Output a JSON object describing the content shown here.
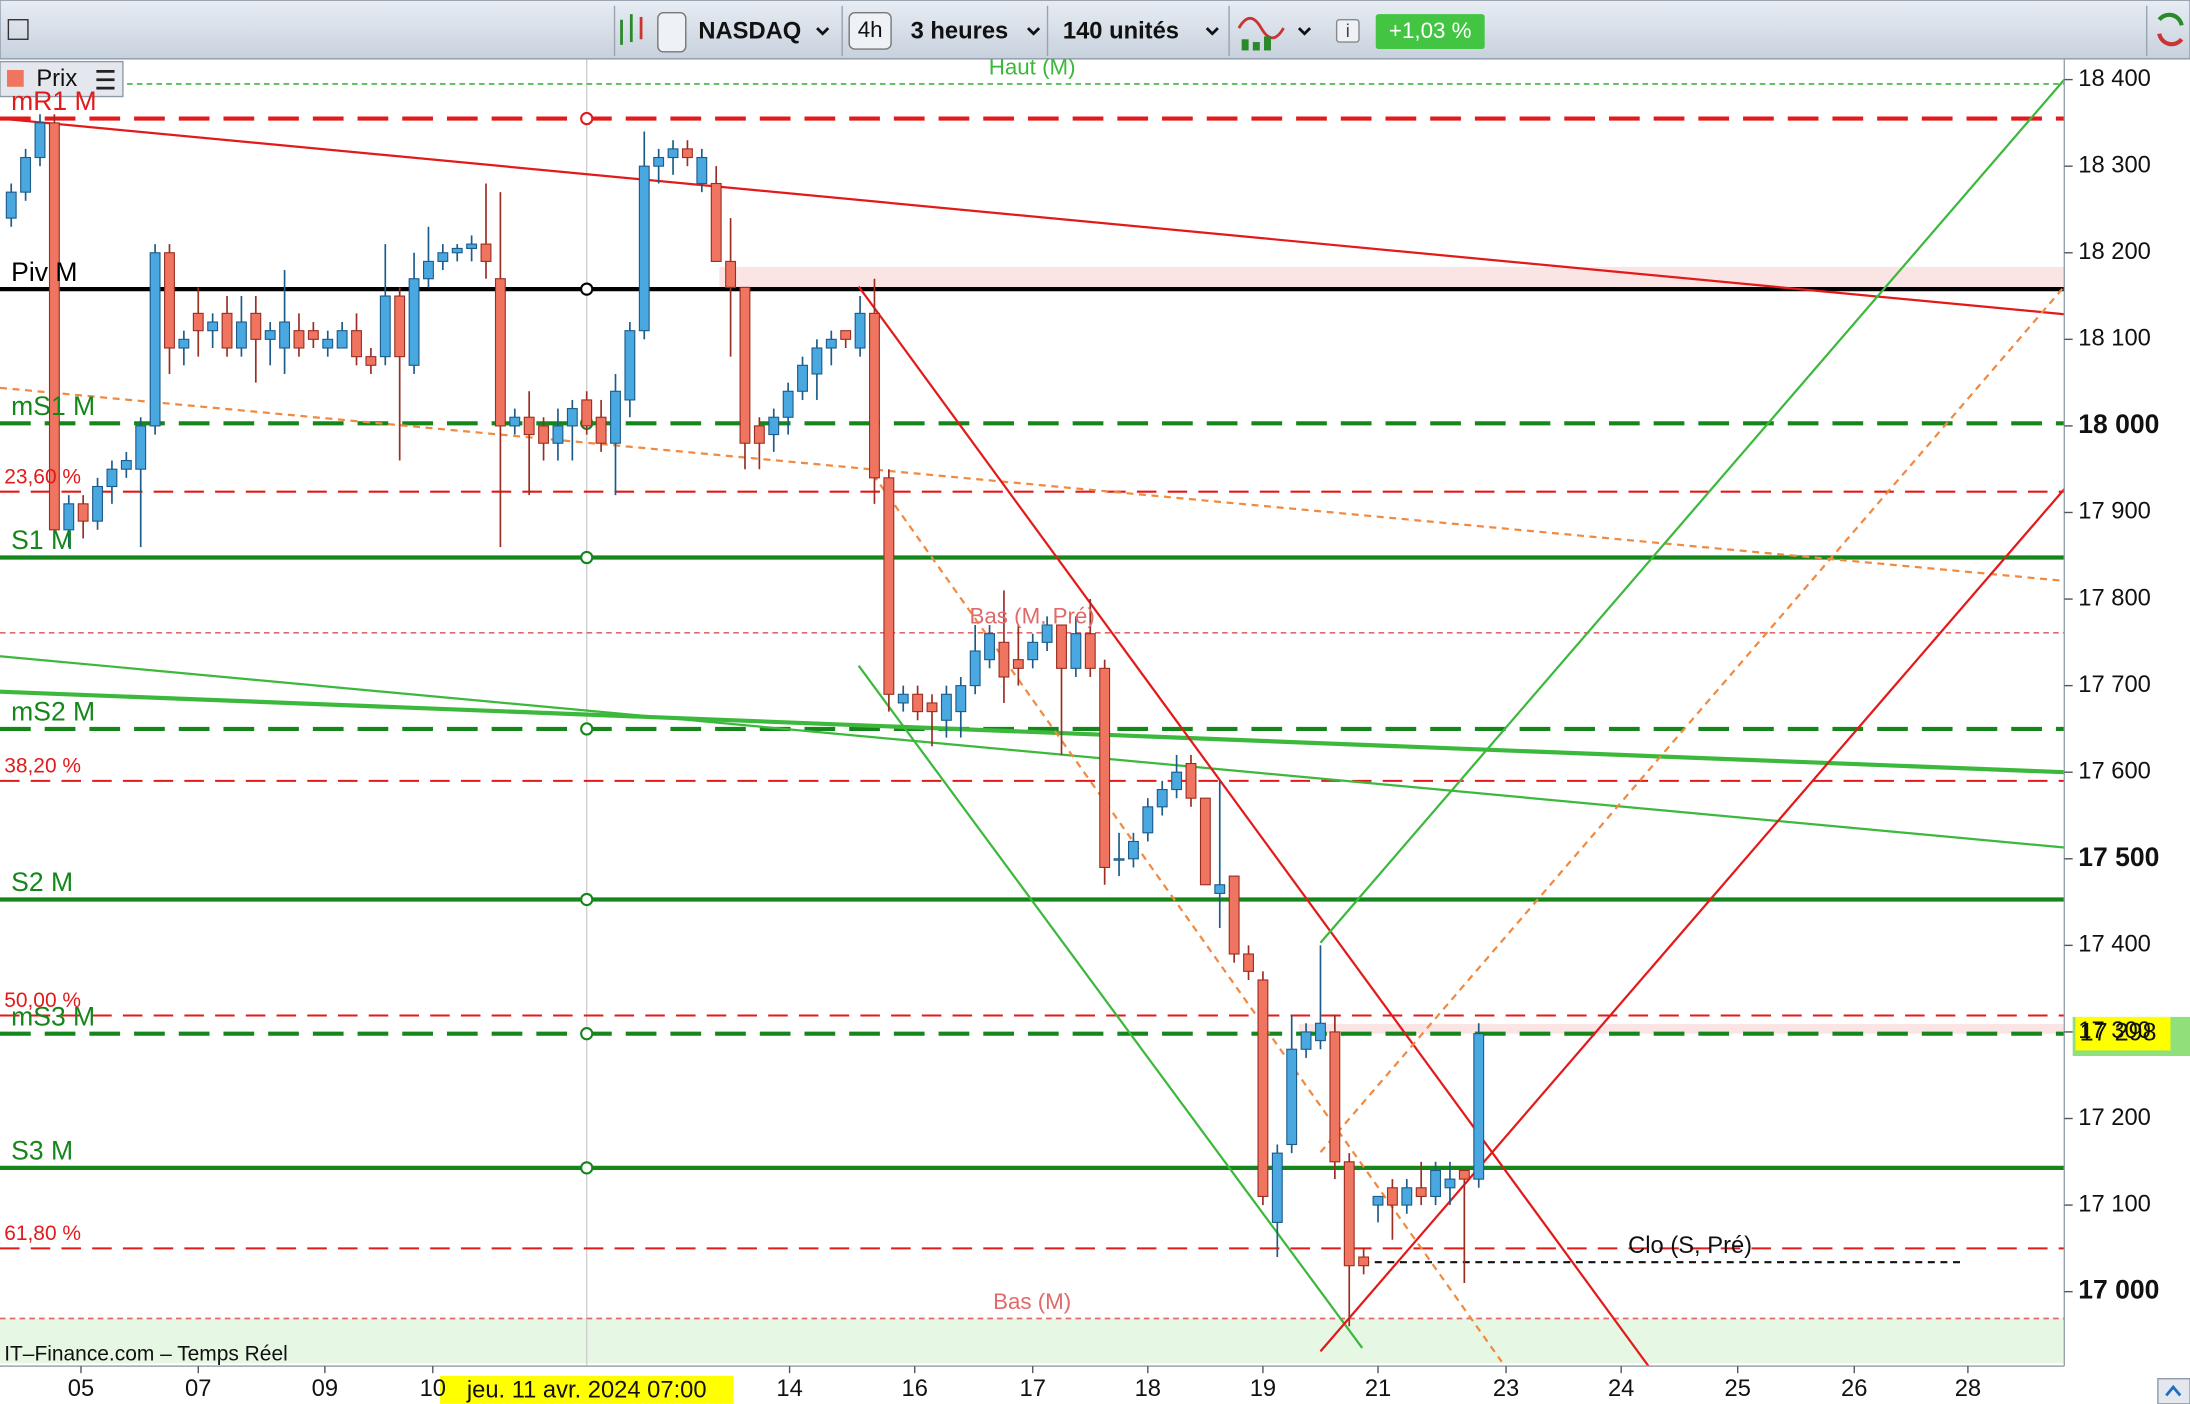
{
  "toolbar": {
    "symbol": "NASDAQ",
    "period_short": "4h",
    "period": "3 heures",
    "units": "140 unités",
    "change": "+1,03 %",
    "price_tab": "Prix"
  },
  "footer": "IT–Finance.com – Temps Réel",
  "chart_data": {
    "type": "candlestick",
    "x": [
      1,
      2,
      3,
      4,
      5,
      6,
      7,
      8,
      9,
      10,
      11,
      12,
      13,
      14,
      15,
      16,
      17,
      18,
      19,
      20,
      21,
      22,
      23,
      24,
      25,
      26,
      27,
      28,
      29,
      30,
      31,
      32,
      33,
      34,
      35,
      36,
      37,
      38,
      39,
      40,
      41,
      42,
      43,
      44,
      45,
      46,
      47,
      48,
      49,
      50,
      51,
      52,
      53,
      54,
      55,
      56,
      57,
      58,
      59,
      60,
      61,
      62,
      63,
      64,
      65,
      66,
      67,
      68,
      69,
      70,
      71,
      72,
      73,
      74,
      75,
      76,
      77,
      78,
      79,
      80,
      81,
      82,
      83,
      84,
      85,
      86,
      87,
      88,
      89,
      90,
      91,
      92,
      93,
      94,
      95,
      96,
      97,
      98,
      99,
      100,
      101,
      102,
      103
    ],
    "open": [
      18240,
      18270,
      18310,
      18350,
      17880,
      17910,
      17890,
      17930,
      17950,
      17950,
      18000,
      18200,
      18090,
      18130,
      18110,
      18130,
      18090,
      18130,
      18100,
      18090,
      18110,
      18110,
      18090,
      18090,
      18110,
      18080,
      18080,
      18150,
      18070,
      18170,
      18190,
      18200,
      18205,
      18210,
      18170,
      18000,
      18010,
      18000,
      17980,
      18000,
      18030,
      18010,
      17980,
      18030,
      18110,
      18300,
      18310,
      18320,
      18280,
      18280,
      18190,
      18160,
      18000,
      17990,
      18010,
      18040,
      18060,
      18090,
      18110,
      18090,
      18130,
      17940,
      17680,
      17690,
      17680,
      17660,
      17670,
      17700,
      17730,
      17750,
      17730,
      17730,
      17750,
      17770,
      17720,
      17760,
      17720,
      17500,
      17500,
      17530,
      17560,
      17580,
      17610,
      17570,
      17460,
      17480,
      17390,
      17360,
      17080,
      17170,
      17280,
      17290,
      17300,
      17150,
      17040,
      17100,
      17120,
      17100,
      17120,
      17110,
      17120,
      17140,
      17130
    ],
    "high": [
      18280,
      18320,
      18360,
      18360,
      17920,
      17920,
      17940,
      17960,
      17970,
      18010,
      18210,
      18210,
      18110,
      18160,
      18130,
      18150,
      18150,
      18150,
      18120,
      18180,
      18130,
      18120,
      18110,
      18120,
      18130,
      18090,
      18210,
      18160,
      18200,
      18230,
      18210,
      18210,
      18220,
      18280,
      18270,
      18020,
      18040,
      18010,
      18020,
      18030,
      18040,
      18030,
      18060,
      18120,
      18340,
      18320,
      18330,
      18330,
      18320,
      18300,
      18240,
      18160,
      18010,
      18020,
      18050,
      18080,
      18100,
      18110,
      18110,
      18150,
      18170,
      17950,
      17700,
      17700,
      17690,
      17700,
      17710,
      17770,
      17770,
      17810,
      17770,
      17760,
      17780,
      17770,
      17780,
      17800,
      17730,
      17530,
      17530,
      17570,
      17590,
      17620,
      17620,
      17570,
      17590,
      17480,
      17400,
      17370,
      17170,
      17320,
      17310,
      17400,
      17320,
      17160,
      17050,
      17110,
      17130,
      17130,
      17150,
      17150,
      17150,
      17140,
      17310
    ],
    "low": [
      18230,
      18260,
      18300,
      17870,
      17860,
      17870,
      17880,
      17910,
      17940,
      17860,
      17990,
      18060,
      18070,
      18080,
      18090,
      18080,
      18080,
      18050,
      18070,
      18060,
      18080,
      18090,
      18080,
      18090,
      18070,
      18060,
      18070,
      17960,
      18060,
      18160,
      18180,
      18190,
      18190,
      18170,
      17860,
      17990,
      17920,
      17960,
      17960,
      17960,
      17990,
      17970,
      17920,
      18010,
      18100,
      18280,
      18290,
      18300,
      18270,
      18190,
      18080,
      17950,
      17950,
      17970,
      17990,
      18030,
      18030,
      18070,
      18090,
      18080,
      17910,
      17670,
      17670,
      17660,
      17630,
      17640,
      17640,
      17690,
      17720,
      17680,
      17700,
      17720,
      17740,
      17620,
      17710,
      17710,
      17470,
      17480,
      17490,
      17520,
      17550,
      17570,
      17560,
      17470,
      17420,
      17380,
      17360,
      17100,
      17040,
      17160,
      17270,
      17280,
      17130,
      16960,
      17020,
      17080,
      17060,
      17090,
      17100,
      17100,
      17100,
      17010,
      17120
    ],
    "close": [
      18270,
      18310,
      18350,
      17880,
      17910,
      17890,
      17930,
      17950,
      17960,
      18000,
      18200,
      18090,
      18100,
      18110,
      18120,
      18090,
      18120,
      18100,
      18110,
      18120,
      18090,
      18100,
      18100,
      18110,
      18080,
      18070,
      18150,
      18080,
      18170,
      18190,
      18200,
      18205,
      18210,
      18190,
      18000,
      18010,
      17990,
      17980,
      18000,
      18020,
      18000,
      17980,
      18040,
      18110,
      18300,
      18310,
      18320,
      18310,
      18310,
      18190,
      18160,
      17980,
      17980,
      18010,
      18040,
      18070,
      18090,
      18100,
      18100,
      18130,
      17940,
      17690,
      17690,
      17670,
      17670,
      17690,
      17700,
      17740,
      17760,
      17710,
      17720,
      17750,
      17770,
      17720,
      17760,
      17720,
      17490,
      17500,
      17520,
      17560,
      17580,
      17600,
      17570,
      17470,
      17470,
      17390,
      17370,
      17110,
      17160,
      17280,
      17300,
      17310,
      17150,
      17030,
      17030,
      17110,
      17100,
      17120,
      17110,
      17140,
      17130,
      17130,
      17298
    ],
    "up_color": "#4aa8e0",
    "down_color": "#f07560",
    "xlim": [
      0.22,
      143.7
    ],
    "ylim": [
      16914,
      18424
    ],
    "xticks": [
      {
        "value": 5.85,
        "label": "05"
      },
      {
        "value": 14.0,
        "label": "07"
      },
      {
        "value": 22.8,
        "label": "09"
      },
      {
        "value": 30.3,
        "label": "10"
      },
      {
        "value": 55.1,
        "label": "14"
      },
      {
        "value": 63.8,
        "label": "16"
      },
      {
        "value": 72.0,
        "label": "17"
      },
      {
        "value": 80.0,
        "label": "18"
      },
      {
        "value": 88.0,
        "label": "19"
      },
      {
        "value": 96.0,
        "label": "21"
      },
      {
        "value": 104.9,
        "label": "23"
      },
      {
        "value": 112.9,
        "label": "24"
      },
      {
        "value": 121.0,
        "label": "25"
      },
      {
        "value": 129.1,
        "label": "26"
      },
      {
        "value": 137.0,
        "label": "28"
      }
    ],
    "yticks": [
      {
        "value": 17000,
        "label": "17 000"
      },
      {
        "value": 17100,
        "label": "17 100"
      },
      {
        "value": 17200,
        "label": "17 200"
      },
      {
        "value": 17300,
        "label": "17 300"
      },
      {
        "value": 17400,
        "label": "17 400"
      },
      {
        "value": 17500,
        "label": "17 500"
      },
      {
        "value": 17600,
        "label": "17 600"
      },
      {
        "value": 17700,
        "label": "17 700"
      },
      {
        "value": 17800,
        "label": "17 800"
      },
      {
        "value": 17900,
        "label": "17 900"
      },
      {
        "value": 18000,
        "label": "18 000"
      },
      {
        "value": 18100,
        "label": "18 100"
      },
      {
        "value": 18200,
        "label": "18 200"
      },
      {
        "value": 18300,
        "label": "18 300"
      },
      {
        "value": 18400,
        "label": "18 400"
      }
    ],
    "levels": [
      {
        "label": "Haut (M)",
        "value": 18395,
        "color": "#3cb83c",
        "style": "dot",
        "label_pos": "center"
      },
      {
        "label": "mR1 M",
        "value": 18355,
        "color": "#e31a1a",
        "style": "dash",
        "label_pos": "left"
      },
      {
        "label": "Piv M",
        "value": 18158,
        "color": "#000000",
        "style": "solid",
        "label_pos": "left"
      },
      {
        "label": "mS1 M",
        "value": 18003,
        "color": "#15861a",
        "style": "dash",
        "label_pos": "left"
      },
      {
        "label": "23,60 %",
        "value": 17924,
        "color": "#e31a1a",
        "style": "fib",
        "label_pos": "fib"
      },
      {
        "label": "S1 M",
        "value": 17848,
        "color": "#15861a",
        "style": "solid",
        "label_pos": "left"
      },
      {
        "label": "Bas (M, Pré)",
        "value": 17761,
        "color": "#e06a6a",
        "style": "dot",
        "label_pos": "center"
      },
      {
        "label": "mS2 M",
        "value": 17650,
        "color": "#15861a",
        "style": "dash",
        "label_pos": "left"
      },
      {
        "label": "38,20 %",
        "value": 17590,
        "color": "#e31a1a",
        "style": "fib",
        "label_pos": "fib"
      },
      {
        "label": "S2 M",
        "value": 17453,
        "color": "#15861a",
        "style": "solid",
        "label_pos": "left"
      },
      {
        "label": "50,00 %",
        "value": 17319,
        "color": "#e31a1a",
        "style": "fib",
        "label_pos": "fib"
      },
      {
        "label": "mS3 M",
        "value": 17298,
        "color": "#15861a",
        "style": "dash",
        "label_pos": "left"
      },
      {
        "label": "S3 M",
        "value": 17143,
        "color": "#15861a",
        "style": "solid",
        "label_pos": "left"
      },
      {
        "label": "61,80 %",
        "value": 17050,
        "color": "#e31a1a",
        "style": "fib",
        "label_pos": "fib"
      },
      {
        "label": "Bas (M)",
        "value": 16969,
        "color": "#e06a6a",
        "style": "dot",
        "label_pos": "center"
      }
    ],
    "close_prev": {
      "label": "Clo (S, Pré)",
      "value": 17034,
      "x": [
        94.9,
        136.6
      ]
    },
    "trendlines": [
      {
        "x": [
          0.22,
          143.7
        ],
        "y": [
          18355,
          18129
        ],
        "color": "#e31a1a",
        "style": "solid"
      },
      {
        "x": [
          0.22,
          143.7
        ],
        "y": [
          18044,
          17821
        ],
        "color": "#f08a40",
        "style": "dot"
      },
      {
        "x": [
          0.22,
          143.7
        ],
        "y": [
          17693,
          17600
        ],
        "color": "#3cb83c",
        "style": "thick"
      },
      {
        "x": [
          0.22,
          143.7
        ],
        "y": [
          17734,
          17513
        ],
        "color": "#3cb83c",
        "style": "solid"
      },
      {
        "x": [
          59.9,
          114.8
        ],
        "y": [
          18161,
          16914
        ],
        "color": "#e31a1a",
        "style": "solid"
      },
      {
        "x": [
          59.9,
          94.9
        ],
        "y": [
          17723,
          16935
        ],
        "color": "#3cb83c",
        "style": "solid"
      },
      {
        "x": [
          60.9,
          104.6
        ],
        "y": [
          17944,
          16919
        ],
        "color": "#f08a40",
        "style": "dot"
      },
      {
        "x": [
          92.0,
          143.7
        ],
        "y": [
          17403,
          18400
        ],
        "color": "#3cb83c",
        "style": "solid"
      },
      {
        "x": [
          92.0,
          143.7
        ],
        "y": [
          16931,
          17927
        ],
        "color": "#e31a1a",
        "style": "solid"
      },
      {
        "x": [
          92.0,
          143.7
        ],
        "y": [
          17161,
          18161
        ],
        "color": "#f08a40",
        "style": "dot"
      }
    ],
    "cursor": {
      "x": 41,
      "label": "jeu. 11 avr. 2024 07:00"
    },
    "last_price": {
      "value": 17298,
      "label": "17 298"
    }
  }
}
